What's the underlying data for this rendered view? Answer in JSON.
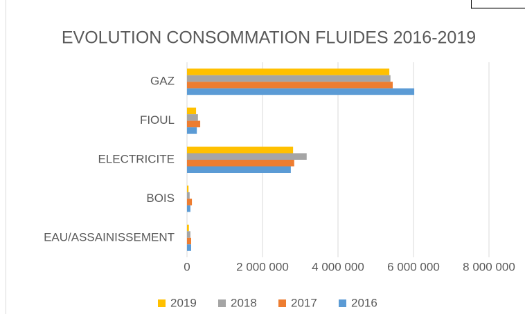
{
  "chart_data": {
    "type": "hbar",
    "title": "EVOLUTION CONSOMMATION FLUIDES 2016-2019",
    "categories": [
      "GAZ",
      "FIOUL",
      "ELECTRICITE",
      "BOIS",
      "EAU/ASSAINISSEMENT"
    ],
    "series": [
      {
        "name": "2019",
        "color": "#ffc000",
        "values": [
          5360000,
          240000,
          2810000,
          40000,
          50000
        ]
      },
      {
        "name": "2018",
        "color": "#a5a5a5",
        "values": [
          5390000,
          290000,
          3170000,
          70000,
          90000
        ]
      },
      {
        "name": "2017",
        "color": "#ed7d31",
        "values": [
          5450000,
          350000,
          2840000,
          130000,
          110000
        ]
      },
      {
        "name": "2016",
        "color": "#5b9bd5",
        "values": [
          6020000,
          260000,
          2750000,
          90000,
          110000
        ]
      }
    ],
    "xlim": [
      0,
      8000000
    ],
    "xticks": [
      0,
      {
        "value": 2000000,
        "label": "2 000 000"
      },
      {
        "value": 4000000,
        "label": "4 000 000"
      },
      {
        "value": 6000000,
        "label": "6 000 000"
      },
      {
        "value": 8000000,
        "label": "8 000 000"
      }
    ],
    "grid": true,
    "legend": "bottom"
  }
}
